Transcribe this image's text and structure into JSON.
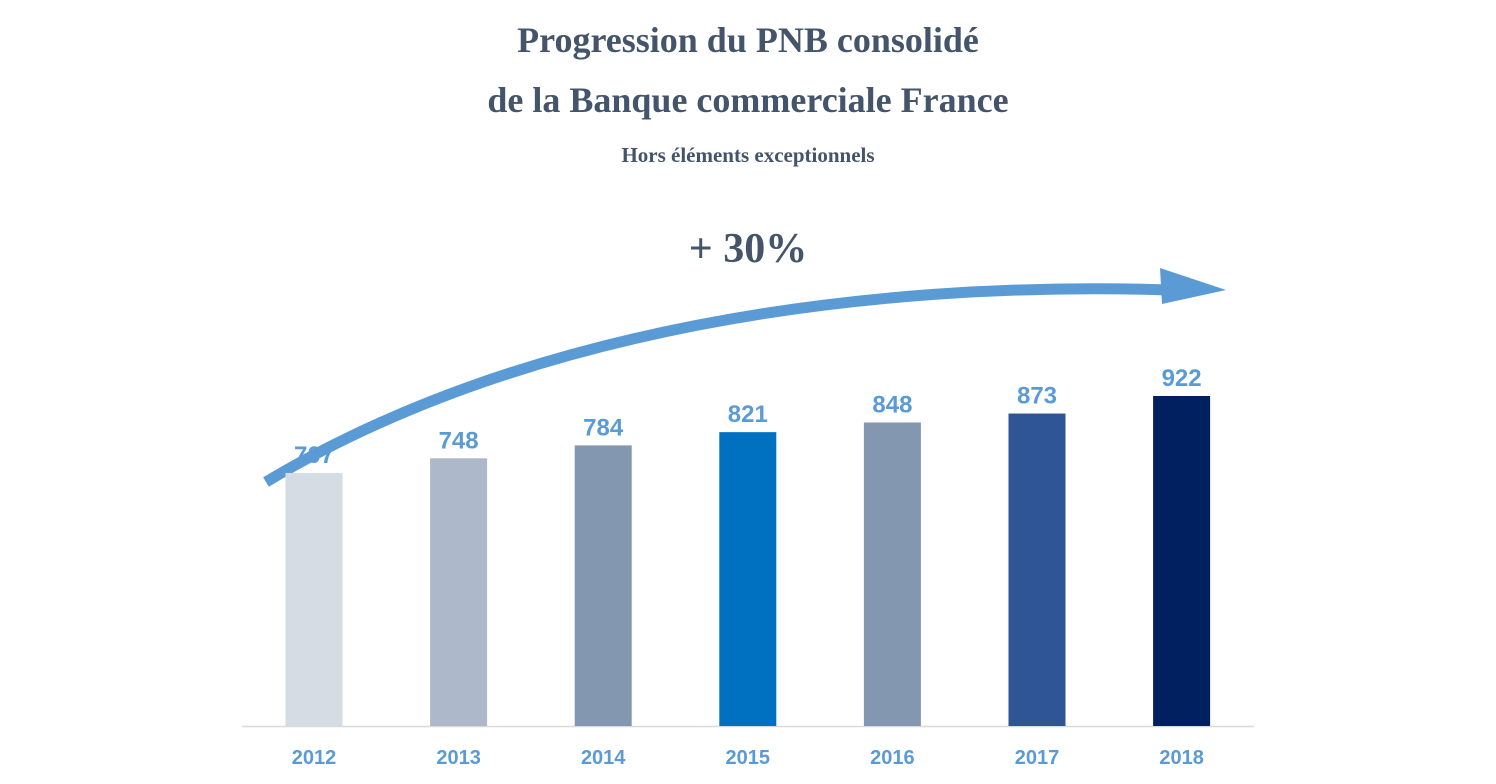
{
  "chart_data": {
    "type": "bar",
    "title_line1": "Progression du PNB consolidé",
    "title_line2": "de la Banque commerciale France",
    "subtitle": "Hors éléments exceptionnels",
    "annotation": "+ 30%",
    "categories": [
      "2012",
      "2013",
      "2014",
      "2015",
      "2016",
      "2017",
      "2018"
    ],
    "values": [
      707,
      748,
      784,
      821,
      848,
      873,
      922
    ],
    "bar_colors": [
      "#d6dce4",
      "#adb9ca",
      "#8497b0",
      "#0070c0",
      "#8497b0",
      "#2f5597",
      "#002060"
    ],
    "label_color": "#5b9bd5",
    "arrow_color": "#5b9bd5",
    "title_color": "#44546a",
    "xlabel": "",
    "ylabel": "",
    "grid": false,
    "legend": "none"
  }
}
